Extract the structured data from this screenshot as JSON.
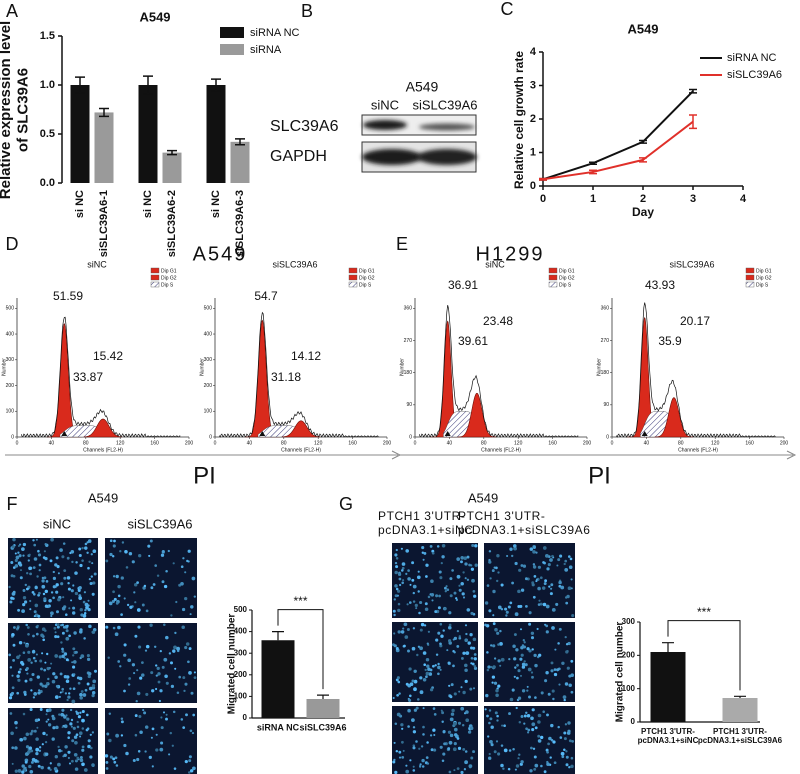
{
  "chart_data": [
    {
      "type": "bar",
      "label": "A",
      "title": "A549",
      "ylabel": "Relative expression level\nof SLC39A6",
      "categories": [
        "si NC",
        "siSLC39A6-1",
        "si NC",
        "siSLC39A6-2",
        "si NC",
        "siSLC39A6-3"
      ],
      "series": [
        {
          "name": "siRNA NC",
          "color": "#111111",
          "values": [
            1.0,
            null,
            1.0,
            null,
            1.0,
            null
          ],
          "errors": [
            0.08,
            null,
            0.09,
            null,
            0.06,
            null
          ]
        },
        {
          "name": "siRNA",
          "color": "#9a9a9a",
          "values": [
            null,
            0.72,
            null,
            0.31,
            null,
            0.42
          ],
          "errors": [
            null,
            0.04,
            null,
            0.02,
            null,
            0.03
          ]
        }
      ],
      "ylim": [
        0,
        1.5
      ],
      "yticks": [
        {
          "value": 0,
          "label": "0.0"
        },
        {
          "value": 0.5,
          "label": "0.5"
        },
        {
          "value": 1,
          "label": "1.0"
        },
        {
          "value": 1.5,
          "label": "1.5"
        }
      ]
    },
    {
      "type": "line",
      "label": "C",
      "title": "A549",
      "xlabel": "Day",
      "ylabel": "Relative cell growth rate",
      "x": [
        0,
        1,
        2,
        3
      ],
      "series": [
        {
          "name": "siRNA NC",
          "color": "#111111",
          "values": [
            0.2,
            0.68,
            1.32,
            2.83
          ],
          "errors": [
            0.02,
            0.03,
            0.04,
            0.05
          ]
        },
        {
          "name": "siSLC39A6",
          "color": "#e0302a",
          "values": [
            0.2,
            0.42,
            0.78,
            1.92
          ],
          "errors": [
            0.02,
            0.05,
            0.06,
            0.2
          ]
        }
      ],
      "xlim": [
        0,
        4
      ],
      "xticks": [
        0,
        1,
        2,
        3,
        4
      ],
      "ylim": [
        0,
        4
      ],
      "yticks": [
        0,
        1,
        2,
        3,
        4
      ]
    },
    {
      "type": "bar",
      "ylabel": "Migrated cell number",
      "categories": [
        "siRNA NC",
        "siSLC39A6"
      ],
      "values": [
        360,
        88
      ],
      "errors": [
        40,
        18
      ],
      "colors": [
        "#111111",
        "#999999"
      ],
      "annotation": "***",
      "ylim": [
        0,
        500
      ],
      "yticks": [
        0,
        100,
        200,
        300,
        400,
        500
      ]
    },
    {
      "type": "bar",
      "ylabel": "Migrated cell number",
      "categories": [
        "PTCH1 3'UTR-\npcDNA3.1+siNC",
        "PTCH1 3'UTR-\npcDNA3.1+siSLC39A6"
      ],
      "values": [
        210,
        72
      ],
      "errors": [
        28,
        5
      ],
      "colors": [
        "#111111",
        "#aaaaaa"
      ],
      "annotation": "***",
      "ylim": [
        0,
        300
      ],
      "yticks": [
        0,
        100,
        200,
        300
      ]
    }
  ],
  "blot": {
    "label": "B",
    "title": "A549",
    "lanes": [
      "siNC",
      "siSLC39A6"
    ],
    "rows": [
      "SLC39A6",
      "GAPDH"
    ]
  },
  "flow": {
    "legend": [
      "Dip G1",
      "Dip G2",
      "Dip S"
    ],
    "xticks": [
      0,
      40,
      80,
      120,
      160,
      200
    ],
    "xlabel": "Channels (FL2-H)",
    "ylabel": "Number",
    "panels": [
      {
        "label": "D",
        "title": "A549",
        "axis_label": "PI",
        "yticks": [
          0,
          100,
          200,
          300,
          400,
          500
        ],
        "plots": [
          {
            "title": "siNC",
            "peaks": [
              51.59,
              33.87,
              15.42
            ]
          },
          {
            "title": "siSLC39A6",
            "peaks": [
              54.7,
              31.18,
              14.12
            ]
          }
        ]
      },
      {
        "label": "E",
        "title": "H1299",
        "axis_label": "PI",
        "yticks": [
          0,
          90,
          180,
          270,
          360
        ],
        "plots": [
          {
            "title": "siNC",
            "peaks": [
              36.91,
              39.61,
              23.48
            ]
          },
          {
            "title": "siSLC39A6",
            "peaks": [
              43.93,
              35.9,
              20.17
            ]
          }
        ]
      }
    ]
  },
  "migration": [
    {
      "label": "F",
      "title": "A549",
      "columns": [
        "siNC",
        "siSLC39A6"
      ]
    },
    {
      "label": "G",
      "title": "A549",
      "columns": [
        "PTCH1 3'UTR-\npcDNA3.1+siNC",
        "PTCH1 3'UTR-\npcDNA3.1+siSLC39A6"
      ]
    }
  ]
}
